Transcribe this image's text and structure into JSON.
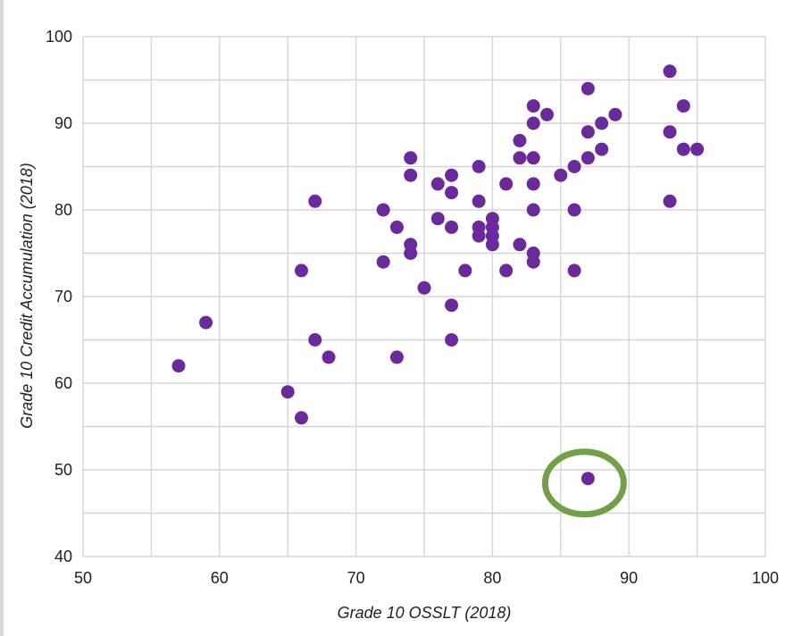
{
  "chart_data": {
    "type": "scatter",
    "xlabel": "Grade 10 OSSLT (2018)",
    "ylabel": "Grade 10 Credit Accumulation (2018)",
    "xlim": [
      50,
      100
    ],
    "ylim": [
      40,
      100
    ],
    "x_ticks": [
      50,
      60,
      70,
      80,
      90,
      100
    ],
    "y_ticks": [
      40,
      50,
      60,
      70,
      80,
      90,
      100
    ],
    "grid": true,
    "point_color": "#6a2a9c",
    "highlight_color": "#72a044",
    "points": [
      [
        57,
        62
      ],
      [
        59,
        67
      ],
      [
        65,
        59
      ],
      [
        66,
        56
      ],
      [
        66,
        73
      ],
      [
        67,
        65
      ],
      [
        67,
        81
      ],
      [
        68,
        63
      ],
      [
        72,
        80
      ],
      [
        72,
        74
      ],
      [
        73,
        78
      ],
      [
        73,
        63
      ],
      [
        74,
        86
      ],
      [
        74,
        84
      ],
      [
        74,
        76
      ],
      [
        74,
        75
      ],
      [
        75,
        71
      ],
      [
        76,
        83
      ],
      [
        76,
        79
      ],
      [
        77,
        84
      ],
      [
        77,
        82
      ],
      [
        77,
        78
      ],
      [
        77,
        69
      ],
      [
        77,
        65
      ],
      [
        78,
        73
      ],
      [
        79,
        85
      ],
      [
        79,
        81
      ],
      [
        79,
        78
      ],
      [
        79,
        77
      ],
      [
        80,
        79
      ],
      [
        80,
        78
      ],
      [
        80,
        77
      ],
      [
        80,
        76
      ],
      [
        81,
        83
      ],
      [
        81,
        73
      ],
      [
        82,
        88
      ],
      [
        82,
        86
      ],
      [
        82,
        76
      ],
      [
        83,
        92
      ],
      [
        83,
        90
      ],
      [
        83,
        86
      ],
      [
        83,
        83
      ],
      [
        83,
        80
      ],
      [
        83,
        75
      ],
      [
        83,
        74
      ],
      [
        84,
        91
      ],
      [
        85,
        84
      ],
      [
        86,
        85
      ],
      [
        86,
        80
      ],
      [
        86,
        73
      ],
      [
        87,
        94
      ],
      [
        87,
        89
      ],
      [
        87,
        86
      ],
      [
        87,
        49
      ],
      [
        88,
        90
      ],
      [
        88,
        87
      ],
      [
        89,
        91
      ],
      [
        93,
        96
      ],
      [
        93,
        89
      ],
      [
        93,
        81
      ],
      [
        94,
        92
      ],
      [
        94,
        87
      ],
      [
        95,
        87
      ]
    ],
    "highlighted_point": [
      87,
      49
    ]
  }
}
